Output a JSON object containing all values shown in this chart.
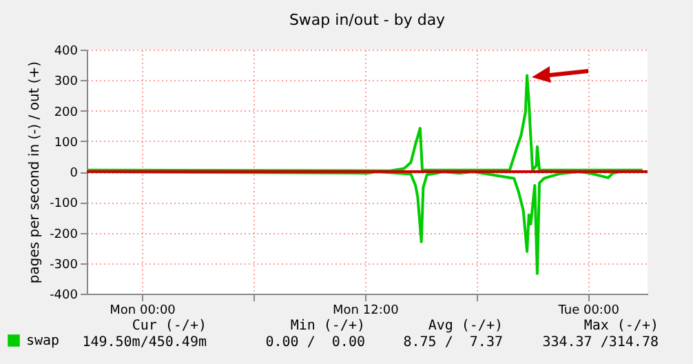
{
  "chart_data": {
    "type": "line",
    "title": "Swap in/out - by day",
    "ylabel": "pages per second in (-) / out (+)",
    "series": [
      {
        "name": "swap",
        "color": "#00cc00",
        "x": [
          "--01-07T21:06",
          "--01-08T13:22",
          "--01-08T14:06",
          "--01-08T14:28",
          "--01-08T14:43",
          "--01-08T14:58",
          "--01-08T15:05",
          "--01-08T19:47",
          "--01-08T20:09",
          "--01-08T20:24",
          "--01-08T20:38",
          "--01-08T20:43",
          "--01-08T20:49",
          "--01-08T20:53",
          "--01-08T21:01",
          "--01-08T21:13",
          "--01-08T21:16",
          "--01-08T21:23",
          "--01-09T02:56"
        ],
        "values": [
          5,
          3,
          10,
          30,
          90,
          142,
          5,
          5,
          75,
          120,
          195,
          315,
          232,
          150,
          5,
          20,
          82,
          5,
          5
        ]
      },
      {
        "color": "#00cc00",
        "x": [
          "--01-07T21:06",
          "--01-08T12:07",
          "--01-08T12:37",
          "--01-08T14:28",
          "--01-08T14:43",
          "--01-08T14:50",
          "--01-08T15:02",
          "--01-08T15:08",
          "--01-08T15:20",
          "--01-08T15:50",
          "--01-08T16:12",
          "--01-08T17:04",
          "--01-08T17:48",
          "--01-08T20:01",
          "--01-08T20:16",
          "--01-08T20:31",
          "--01-08T20:43",
          "--01-08T20:49",
          "--01-08T20:55",
          "--01-08T21:08",
          "--01-08T21:16",
          "--01-08T21:23",
          "--01-08T21:38",
          "--01-08T22:00",
          "--01-08T22:29",
          "--01-08T23:29",
          "--01-09T00:06",
          "--01-09T01:05",
          "--01-09T01:20",
          "--01-09T01:42",
          "--01-09T02:56"
        ],
        "values": [
          0,
          -5,
          0,
          -8,
          -45,
          -82,
          -230,
          -52,
          -10,
          -5,
          0,
          -5,
          0,
          -22,
          -67,
          -127,
          -262,
          -142,
          -172,
          -45,
          -334,
          -37,
          -22,
          -15,
          -7,
          0,
          -5,
          -20,
          -5,
          0,
          0
        ]
      }
    ],
    "xlim": [
      "--01-07T21:02",
      "--01-09T03:12"
    ],
    "xticks": [
      {
        "value": "--01-08T00:00",
        "label": "Mon 00:00"
      },
      {
        "value": "--01-08T06:00",
        "label": null
      },
      {
        "value": "--01-08T12:00",
        "label": "Mon 12:00"
      },
      {
        "value": "--01-08T18:00",
        "label": null
      },
      {
        "value": "--01-09T00:00",
        "label": "Tue 00:00"
      }
    ],
    "ylim": [
      -400,
      400
    ],
    "yticks": [
      -400,
      -300,
      -200,
      -100,
      0,
      100,
      200,
      300,
      400
    ],
    "grid": true,
    "legend": "bottom left",
    "ref_lines": [
      {
        "axis": "y",
        "value": 0,
        "color": "#cc0000"
      }
    ],
    "annotations": [
      "Cur (-/+)",
      "149.50m/450.49m",
      "Min (-/+)",
      "0.00 /  0.00",
      "Avg (-/+)",
      "8.75 /  7.37",
      "Max (-/+)",
      "334.37 /314.78"
    ]
  }
}
